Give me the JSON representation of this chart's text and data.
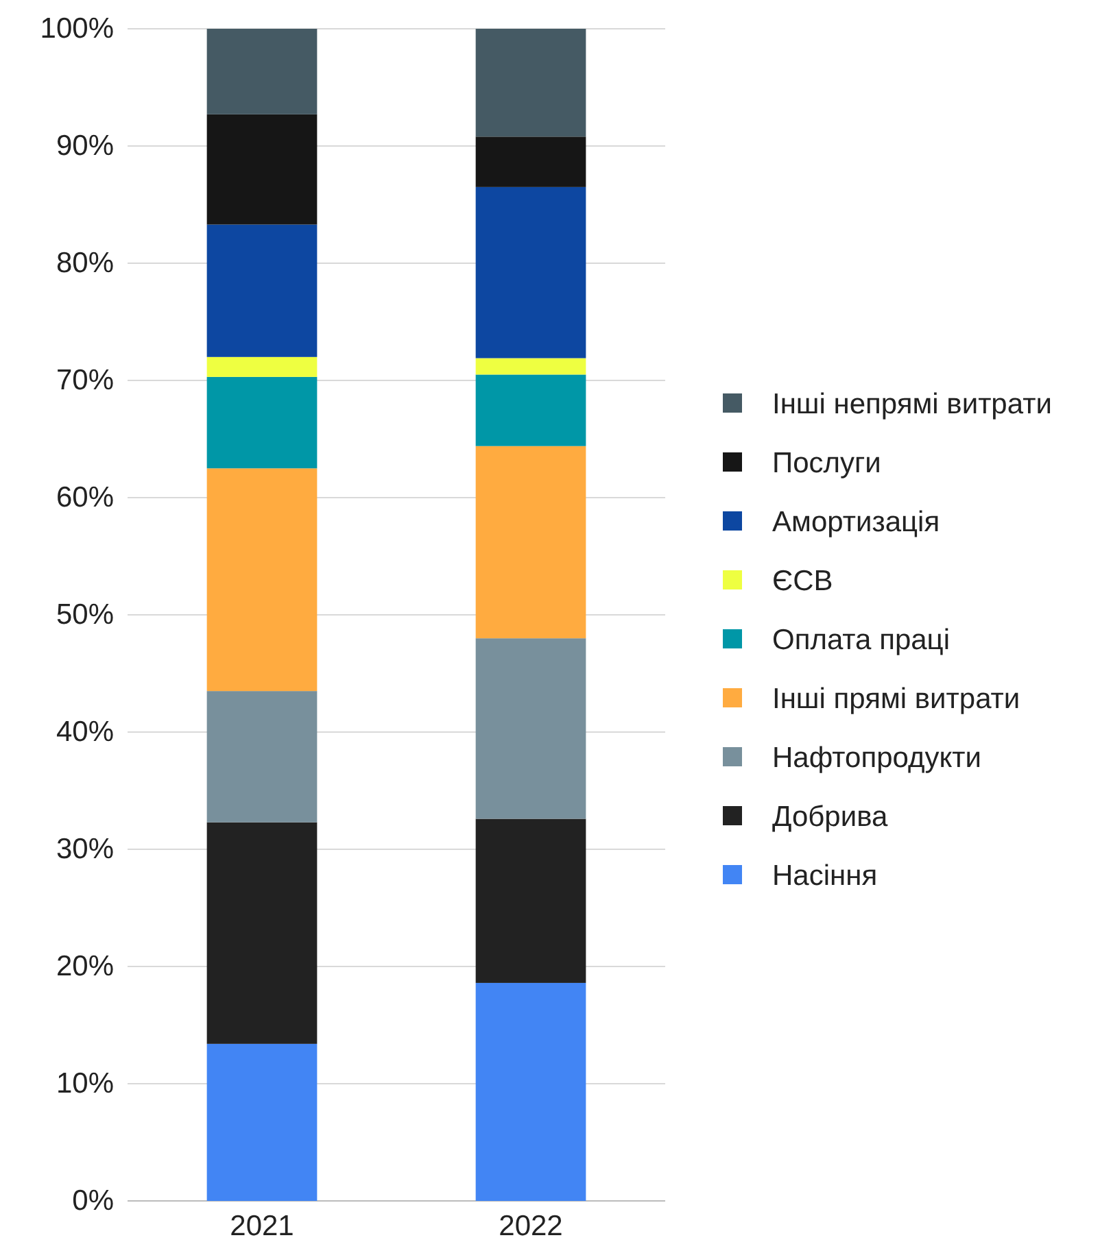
{
  "chart_data": {
    "type": "bar",
    "stacked": true,
    "categories": [
      "2021",
      "2022"
    ],
    "series": [
      {
        "name": "Насіння",
        "color": "#4285f4",
        "values": [
          13.4,
          18.6
        ]
      },
      {
        "name": "Добрива",
        "color": "#222222",
        "values": [
          18.9,
          14.0
        ]
      },
      {
        "name": "Нафтопродукти",
        "color": "#78909c",
        "values": [
          11.2,
          15.4
        ]
      },
      {
        "name": "Інші прямі витрати",
        "color": "#ffab40",
        "values": [
          19.0,
          16.4
        ]
      },
      {
        "name": "Оплата праці",
        "color": "#0097a7",
        "values": [
          7.8,
          6.1
        ]
      },
      {
        "name": "ЄСВ",
        "color": "#eeff41",
        "values": [
          1.7,
          1.4
        ]
      },
      {
        "name": "Амортизація",
        "color": "#0d47a1",
        "values": [
          11.3,
          14.6
        ]
      },
      {
        "name": "Послуги",
        "color": "#161616",
        "values": [
          9.4,
          4.3
        ]
      },
      {
        "name": "Інші непрямі витрати",
        "color": "#455a64",
        "values": [
          7.3,
          9.2
        ]
      }
    ],
    "ylim": [
      0,
      100
    ],
    "yticks": [
      {
        "value": 0,
        "label": "0%"
      },
      {
        "value": 10,
        "label": "10%"
      },
      {
        "value": 20,
        "label": "20%"
      },
      {
        "value": 30,
        "label": "30%"
      },
      {
        "value": 40,
        "label": "40%"
      },
      {
        "value": 50,
        "label": "50%"
      },
      {
        "value": 60,
        "label": "60%"
      },
      {
        "value": 70,
        "label": "70%"
      },
      {
        "value": 80,
        "label": "80%"
      },
      {
        "value": 90,
        "label": "90%"
      },
      {
        "value": 100,
        "label": "100%"
      }
    ],
    "grid": "y",
    "legend": "right"
  }
}
